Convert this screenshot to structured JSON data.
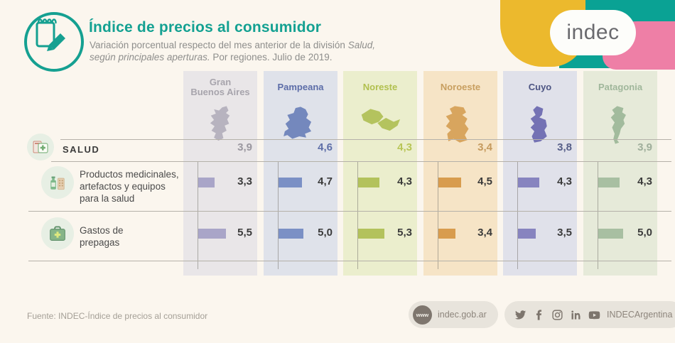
{
  "header": {
    "title": "Índice de precios al consumidor",
    "subtitle_line1_normal": "Variación porcentual respecto del mes anterior de la división ",
    "subtitle_line1_italic": "Salud,",
    "subtitle_line2_italic": "según principales aperturas.",
    "subtitle_line2_normal": " Por regiones. Julio de 2019.",
    "header_icon": "notepad-pencil-icon",
    "accent_color": "#14a192"
  },
  "logo": {
    "text": "indec",
    "yellow": "#ecb92d",
    "teal": "#0aa294",
    "pink": "#ee7fa6"
  },
  "rows": {
    "salud_label": "SALUD",
    "salud_icon": "health-calculator-icon",
    "productos_line1": "Productos medicinales,",
    "productos_line2": "artefactos y equipos",
    "productos_line3": "para la salud",
    "productos_icon": "medicine-bottle-pills-icon",
    "prepagas_line1": "Gastos de",
    "prepagas_line2": "prepagas",
    "prepagas_icon": "first-aid-kit-icon"
  },
  "regions": [
    {
      "name": "Gran\nBuenos Aires",
      "col_bg": "#e9e6e8",
      "name_color": "#a7a4ac",
      "map_color": "#b7b3bf",
      "bar_color": "#a9a5c8",
      "salud_color": "#9a979f",
      "salud": "3,9",
      "productos": "3,3",
      "prepagas": "5,5"
    },
    {
      "name": "Pampeana",
      "col_bg": "#dfe2ea",
      "name_color": "#5c6da8",
      "map_color": "#7488bd",
      "bar_color": "#7b90c5",
      "salud_color": "#5f6fa8",
      "salud": "4,6",
      "productos": "4,7",
      "prepagas": "5,0"
    },
    {
      "name": "Noreste",
      "col_bg": "#ebeecd",
      "name_color": "#b1c04f",
      "map_color": "#b4c35e",
      "bar_color": "#b3c25c",
      "salud_color": "#b8c556",
      "salud": "4,3",
      "productos": "4,3",
      "prepagas": "5,3"
    },
    {
      "name": "Noroeste",
      "col_bg": "#f6e4c6",
      "name_color": "#c89f60",
      "map_color": "#d8a55e",
      "bar_color": "#d89c4e",
      "salud_color": "#c59a5e",
      "salud": "3,4",
      "productos": "4,5",
      "prepagas": "3,4"
    },
    {
      "name": "Cuyo",
      "col_bg": "#e0e1ea",
      "name_color": "#4d5583",
      "map_color": "#7472b4",
      "bar_color": "#8784bf",
      "salud_color": "#565e88",
      "salud": "3,8",
      "productos": "4,3",
      "prepagas": "3,5"
    },
    {
      "name": "Patagonia",
      "col_bg": "#e6ead9",
      "name_color": "#a0b79b",
      "map_color": "#a2bb9d",
      "bar_color": "#a8bfa2",
      "salud_color": "#9fae9b",
      "salud": "3,9",
      "productos": "4,3",
      "prepagas": "5,0"
    }
  ],
  "chart_data": {
    "type": "bar",
    "orientation": "horizontal",
    "title": "Índice de precios al consumidor",
    "subtitle": "Variación porcentual respecto del mes anterior de la división Salud, según principales aperturas. Por regiones. Julio de 2019.",
    "unit": "% monthly variation",
    "categories": [
      "Gran Buenos Aires",
      "Pampeana",
      "Noreste",
      "Noroeste",
      "Cuyo",
      "Patagonia"
    ],
    "series": [
      {
        "name": "Salud",
        "values": [
          3.9,
          4.6,
          4.3,
          3.4,
          3.8,
          3.9
        ]
      },
      {
        "name": "Productos medicinales, artefactos y equipos para la salud",
        "values": [
          3.3,
          4.7,
          4.3,
          4.5,
          4.3,
          4.3
        ]
      },
      {
        "name": "Gastos de prepagas",
        "values": [
          5.5,
          5.0,
          5.3,
          3.4,
          3.5,
          5.0
        ]
      }
    ]
  },
  "footer": {
    "source": "Fuente: INDEC-Índice de precios al consumidor",
    "www_label": "www",
    "website": "indec.gob.ar",
    "social_handle": "INDECArgentina",
    "social_icons": [
      "twitter-icon",
      "facebook-icon",
      "instagram-icon",
      "linkedin-icon",
      "youtube-icon"
    ]
  }
}
